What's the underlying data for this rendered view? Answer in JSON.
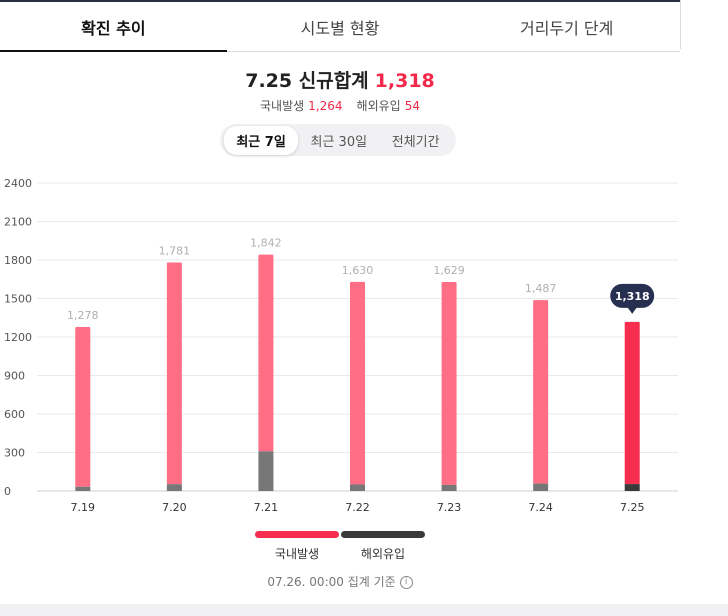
{
  "tabs": [
    {
      "label": "확진 추이",
      "active": true
    },
    {
      "label": "시도별 현황",
      "active": false
    },
    {
      "label": "거리두기 단계",
      "active": false
    }
  ],
  "summary": {
    "headline": "7.25 신규합계",
    "total": "1,318",
    "domestic_label": "국내발생",
    "domestic_value": "1,264",
    "overseas_label": "해외유입",
    "overseas_value": "54"
  },
  "period_toggle": [
    {
      "label": "최근 7일",
      "active": true
    },
    {
      "label": "최근 30일",
      "active": false
    },
    {
      "label": "전체기간",
      "active": false
    }
  ],
  "colors": {
    "domestic": "#ff6e84",
    "domestic_highlight": "#f72d50",
    "overseas": "#777777",
    "overseas_highlight": "#3a3a3a",
    "tooltip": "#273050",
    "grid": "#e9e9e9"
  },
  "chart_data": {
    "type": "bar",
    "stacked": true,
    "categories": [
      "7.19",
      "7.20",
      "7.21",
      "7.22",
      "7.23",
      "7.24",
      "7.25"
    ],
    "series": [
      {
        "name": "해외유입",
        "values": [
          33,
          53,
          309,
          51,
          48,
          58,
          54
        ]
      },
      {
        "name": "국내발생",
        "values": [
          1245,
          1728,
          1533,
          1579,
          1581,
          1429,
          1264
        ]
      }
    ],
    "totals_labels": [
      "1,278",
      "1,781",
      "1,842",
      "1,630",
      "1,629",
      "1,487",
      "1,318"
    ],
    "totals": [
      1278,
      1781,
      1842,
      1630,
      1629,
      1487,
      1318
    ],
    "highlight_index": 6,
    "highlight_label": "1,318",
    "y_ticks": [
      0,
      300,
      600,
      900,
      1200,
      1500,
      1800,
      2100,
      2400
    ],
    "ylim": [
      0,
      2400
    ],
    "grid": true,
    "legend_position": "bottom"
  },
  "legend": [
    {
      "label": "국내발생"
    },
    {
      "label": "해외유입"
    }
  ],
  "basis_text": "07.26. 00:00 집계 기준"
}
